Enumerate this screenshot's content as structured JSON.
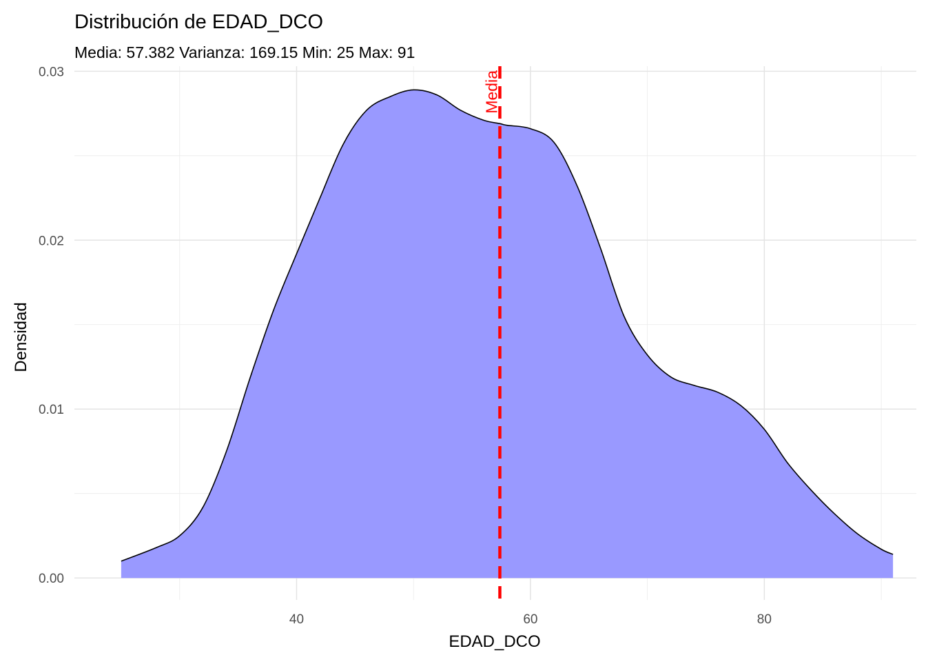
{
  "chart_data": {
    "type": "area",
    "title": "Distribución de EDAD_DCO",
    "subtitle": "Media: 57.382 Varianza: 169.15 Min: 25 Max: 91",
    "xlabel": "EDAD_DCO",
    "ylabel": "Densidad",
    "xlim": [
      21,
      93
    ],
    "ylim": [
      -0.0013,
      0.0303
    ],
    "x_ticks": [
      "40",
      "60",
      "80"
    ],
    "y_ticks": [
      "0.00",
      "0.01",
      "0.02",
      "0.03"
    ],
    "grid": true,
    "fill_color": "#9999ff",
    "line_color": "#000000",
    "mean": 57.382,
    "mean_label": "Media",
    "mean_color": "#ff0000",
    "x": [
      25,
      28,
      30,
      32,
      34,
      36,
      38,
      40,
      42,
      44,
      46,
      48,
      50,
      52,
      54,
      56,
      57.4,
      58,
      60,
      62,
      64,
      66,
      68,
      70,
      72,
      74,
      76,
      78,
      80,
      82,
      84,
      86,
      88,
      90,
      91
    ],
    "y": [
      0.001,
      0.0018,
      0.0025,
      0.0042,
      0.0075,
      0.0118,
      0.0158,
      0.0192,
      0.0225,
      0.0257,
      0.0277,
      0.0285,
      0.0289,
      0.0286,
      0.0277,
      0.0271,
      0.0269,
      0.0268,
      0.0266,
      0.0258,
      0.0232,
      0.0195,
      0.0155,
      0.0132,
      0.0119,
      0.0114,
      0.011,
      0.0102,
      0.0088,
      0.0068,
      0.0052,
      0.0038,
      0.0026,
      0.0017,
      0.0014
    ]
  }
}
